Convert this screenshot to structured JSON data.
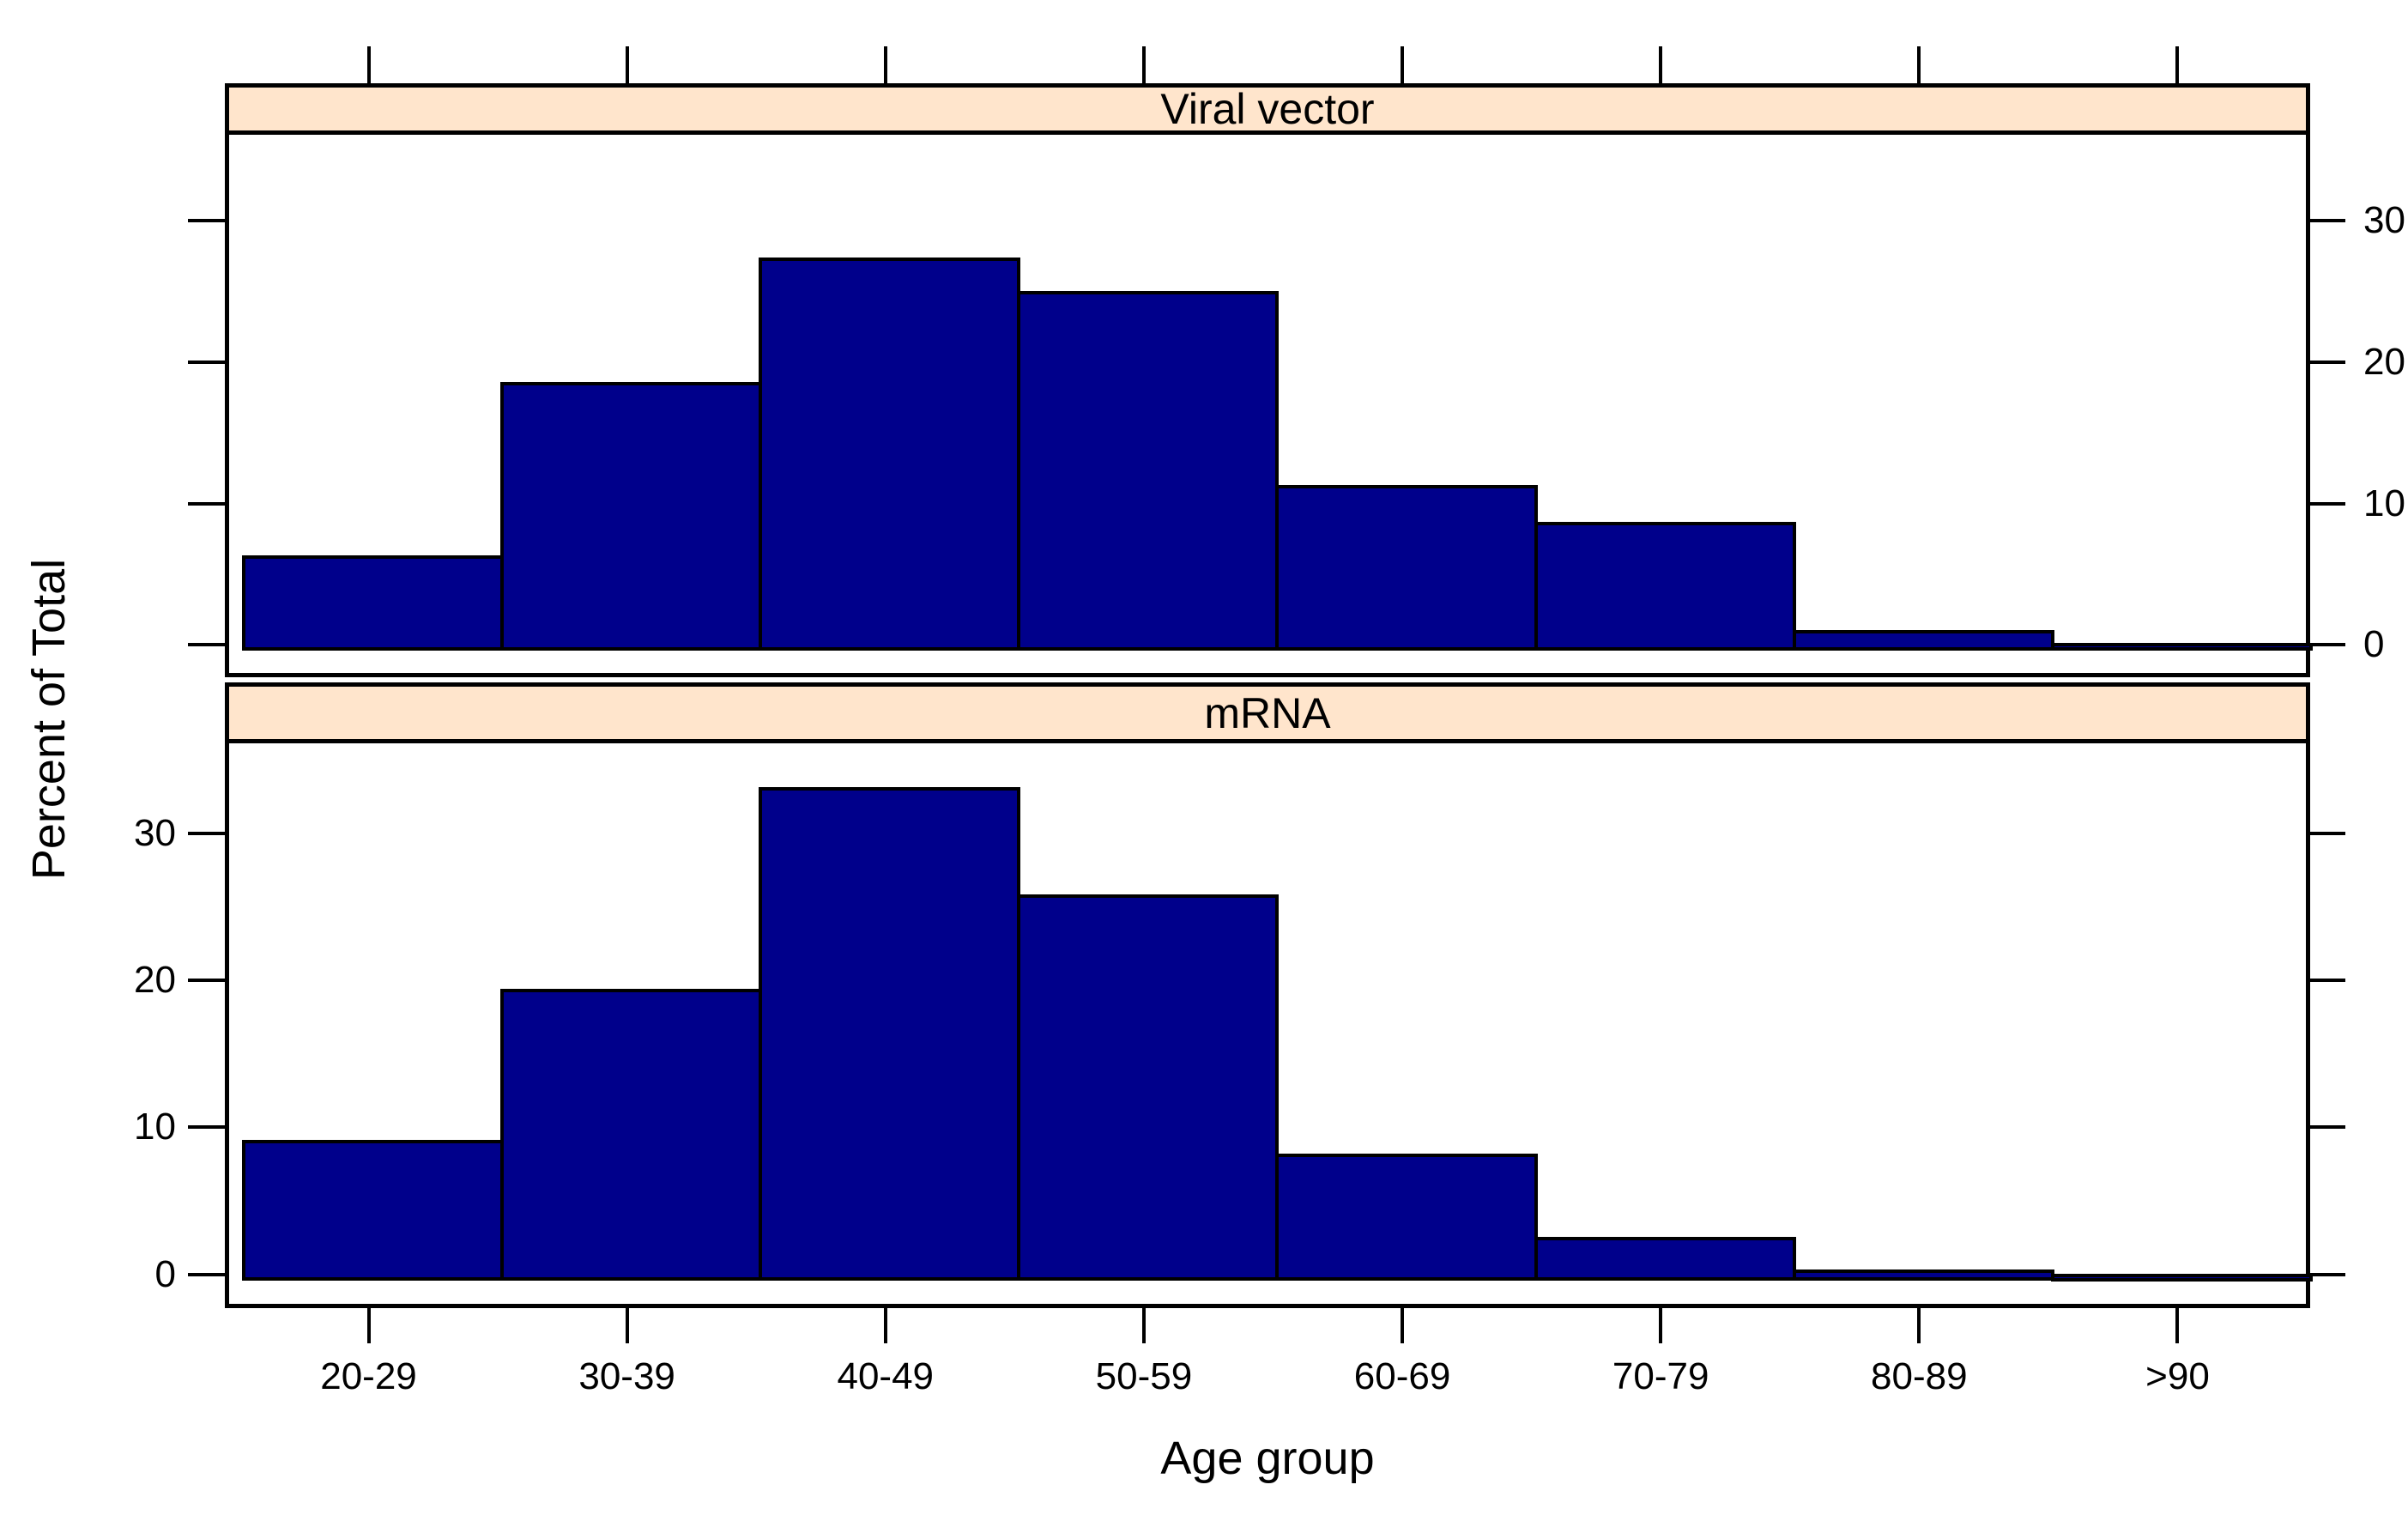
{
  "chart_data": {
    "type": "bar",
    "variant": "lattice-conditional-histogram",
    "title": "",
    "xlabel": "Age group",
    "ylabel": "Percent of Total",
    "categories": [
      "20-29",
      "30-39",
      "40-49",
      "50-59",
      "60-69",
      "70-79",
      "80-89",
      ">90"
    ],
    "panels": [
      {
        "label": "Viral vector",
        "position": "top",
        "values": [
          6.5,
          18.8,
          27.6,
          25.2,
          11.5,
          8.9,
          1.2,
          0.3
        ],
        "y_axis_labels_side": "right"
      },
      {
        "label": "mRNA",
        "position": "bottom",
        "values": [
          9.3,
          19.6,
          33.3,
          26.0,
          8.4,
          2.7,
          0.5,
          0.2
        ],
        "y_axis_labels_side": "left"
      }
    ],
    "y_ticks": [
      0,
      10,
      20,
      30
    ],
    "ylim": [
      -2.3,
      36.4
    ],
    "grid": "off",
    "legend": "none",
    "bar_color": "#00008B",
    "strip_color": "#FFE5CC",
    "axis_color": "#000000",
    "background_color": "#FFFFFF"
  }
}
